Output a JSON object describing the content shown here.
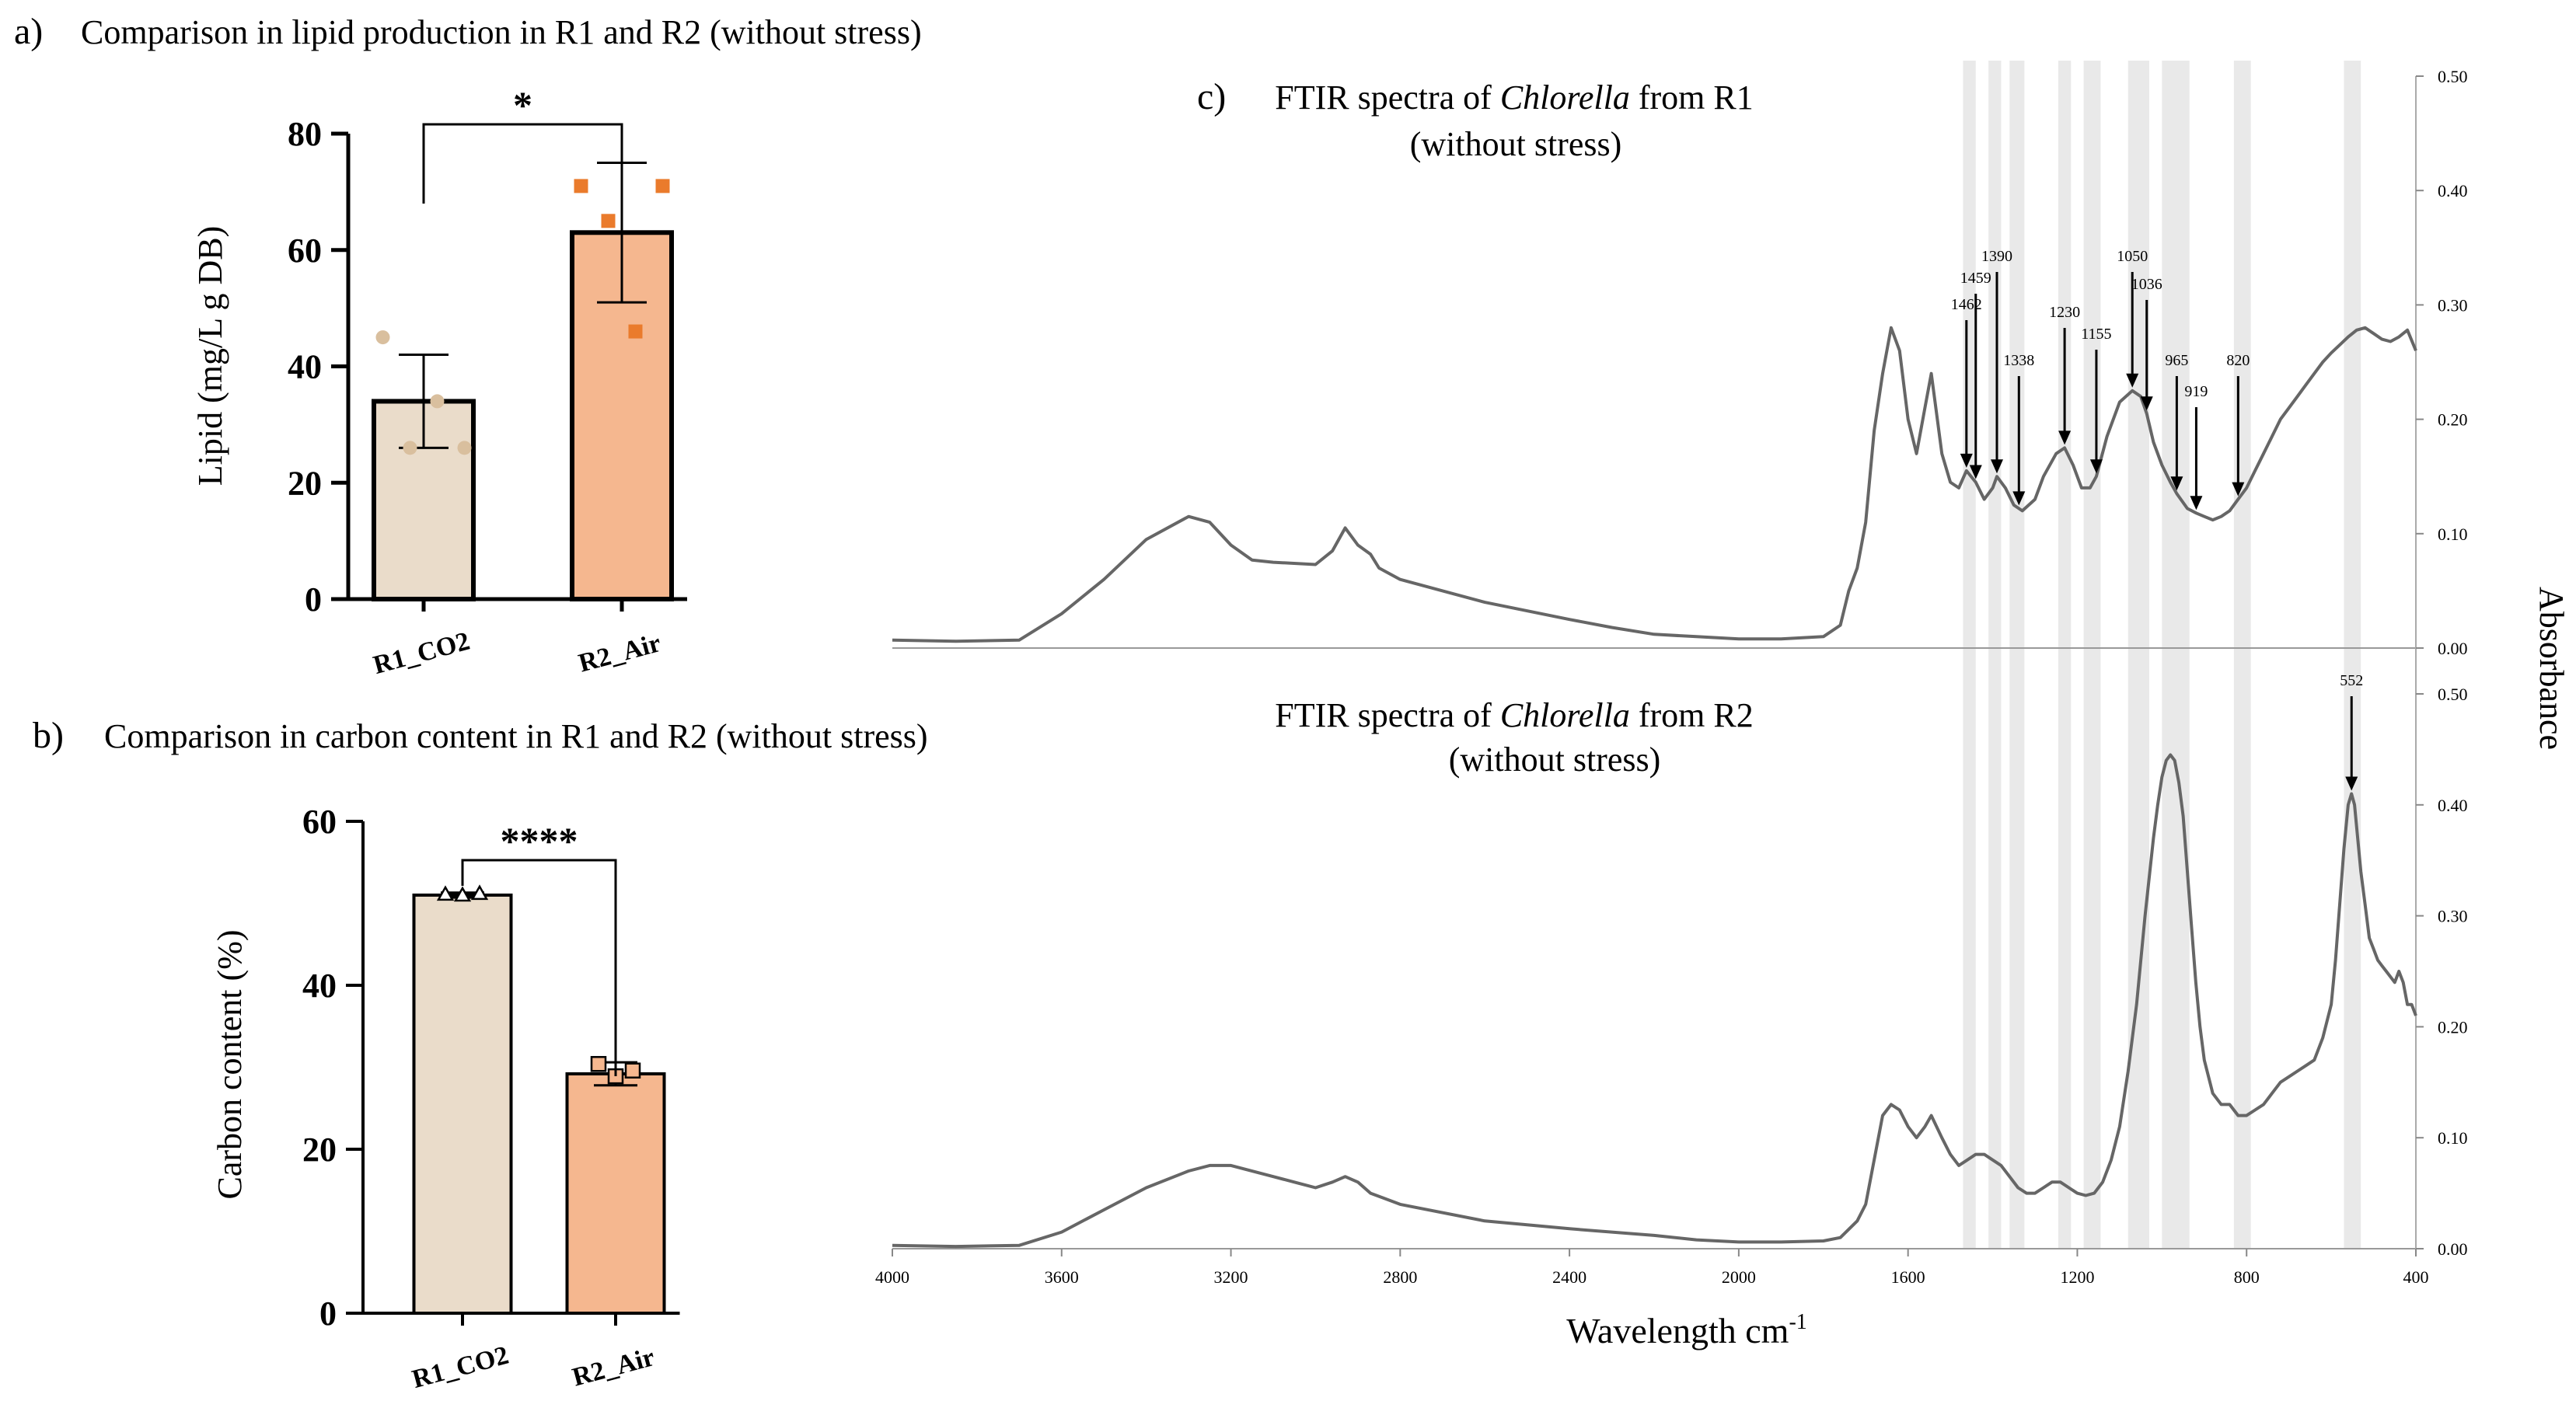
{
  "chart_data": [
    {
      "id": "a",
      "type": "bar",
      "panel_letter": "a)",
      "title": "Comparison in lipid production in R1 and R2 (without stress)",
      "ylabel": "Lipid  (mg/L g DB)",
      "ylim": [
        0,
        80
      ],
      "yticks": [
        0,
        20,
        40,
        60,
        80
      ],
      "categories": [
        "R1_CO2",
        "R2_Air"
      ],
      "values": [
        34,
        63
      ],
      "errors": [
        8,
        12
      ],
      "points": [
        [
          45,
          26,
          34,
          26
        ],
        [
          71,
          65,
          46,
          71
        ]
      ],
      "significance": "*",
      "colors": [
        "#eadcca",
        "#f5b78f"
      ],
      "point_colors": [
        "#d9bf9e",
        "#ea7b2c"
      ]
    },
    {
      "id": "b",
      "type": "bar",
      "panel_letter": "b)",
      "title": "Comparison in carbon content in R1 and R2 (without stress)",
      "ylabel": "Carbon content  (%)",
      "ylim": [
        0,
        60
      ],
      "yticks": [
        0,
        20,
        40,
        60
      ],
      "categories": [
        "R1_CO2",
        "R2_Air"
      ],
      "values": [
        51,
        29.2
      ],
      "errors": [
        0.3,
        1.4
      ],
      "points": [
        [
          51.1,
          51.0,
          51.2
        ],
        [
          30.4,
          28.9,
          29.6
        ]
      ],
      "significance": "****",
      "colors": [
        "#eadcca",
        "#f5b78f"
      ]
    },
    {
      "id": "c",
      "type": "line",
      "panel_letter": "c)",
      "title_prefix": "FTIR spectra of ",
      "title_species": "Chlorella",
      "xlabel": "Wavelength cm",
      "xlabel_sup": "-1",
      "right_label": "Absorbance",
      "xlim": [
        4000,
        400
      ],
      "xticks": [
        "4000",
        "3600",
        "3200",
        "2800",
        "2400",
        "2000",
        "1600",
        "1200",
        "800",
        "400"
      ],
      "bands": [
        [
          1470,
          1440
        ],
        [
          1410,
          1380
        ],
        [
          1360,
          1325
        ],
        [
          1245,
          1215
        ],
        [
          1185,
          1145
        ],
        [
          1080,
          1030
        ],
        [
          1000,
          935
        ],
        [
          830,
          790
        ],
        [
          570,
          530
        ]
      ],
      "series": [
        {
          "name": "R1",
          "title_suffix": " from R1",
          "subtitle": "(without stress)",
          "ylim": [
            0,
            0.5
          ],
          "yticks": [
            "0.00",
            "0.10",
            "0.20",
            "0.30",
            "0.40",
            "0.50"
          ],
          "x": [
            4000,
            3850,
            3700,
            3600,
            3500,
            3400,
            3300,
            3250,
            3200,
            3150,
            3100,
            3000,
            2960,
            2930,
            2900,
            2870,
            2850,
            2800,
            2600,
            2400,
            2300,
            2200,
            2100,
            2000,
            1900,
            1800,
            1760,
            1740,
            1720,
            1700,
            1680,
            1660,
            1640,
            1620,
            1600,
            1580,
            1560,
            1545,
            1520,
            1500,
            1480,
            1462,
            1440,
            1420,
            1400,
            1390,
            1370,
            1350,
            1330,
            1300,
            1280,
            1250,
            1230,
            1210,
            1190,
            1170,
            1155,
            1130,
            1100,
            1070,
            1050,
            1036,
            1020,
            1000,
            980,
            965,
            940,
            919,
            900,
            880,
            860,
            840,
            820,
            800,
            780,
            760,
            740,
            720,
            700,
            680,
            660,
            640,
            620,
            600,
            580,
            560,
            540,
            520,
            500,
            480,
            460,
            440,
            420,
            400
          ],
          "y": [
            0.007,
            0.006,
            0.007,
            0.03,
            0.06,
            0.095,
            0.115,
            0.11,
            0.09,
            0.077,
            0.075,
            0.073,
            0.085,
            0.105,
            0.09,
            0.082,
            0.07,
            0.06,
            0.04,
            0.025,
            0.018,
            0.012,
            0.01,
            0.008,
            0.008,
            0.01,
            0.02,
            0.05,
            0.07,
            0.11,
            0.19,
            0.24,
            0.28,
            0.26,
            0.2,
            0.17,
            0.21,
            0.24,
            0.17,
            0.145,
            0.14,
            0.155,
            0.145,
            0.13,
            0.14,
            0.15,
            0.14,
            0.125,
            0.12,
            0.13,
            0.15,
            0.17,
            0.175,
            0.16,
            0.14,
            0.14,
            0.15,
            0.185,
            0.215,
            0.225,
            0.22,
            0.205,
            0.18,
            0.16,
            0.145,
            0.135,
            0.122,
            0.118,
            0.115,
            0.112,
            0.115,
            0.12,
            0.13,
            0.14,
            0.155,
            0.17,
            0.185,
            0.2,
            0.21,
            0.22,
            0.23,
            0.24,
            0.25,
            0.258,
            0.265,
            0.272,
            0.278,
            0.28,
            0.275,
            0.27,
            0.268,
            0.272,
            0.278,
            0.26
          ]
        },
        {
          "name": "R2",
          "title_suffix": " from R2",
          "subtitle": "(without stress)",
          "ylim": [
            0,
            0.5
          ],
          "yticks": [
            "0.00",
            "0.10",
            "0.20",
            "0.30",
            "0.40",
            "0.50"
          ],
          "x": [
            4000,
            3850,
            3700,
            3600,
            3500,
            3400,
            3300,
            3250,
            3200,
            3100,
            3000,
            2960,
            2930,
            2900,
            2870,
            2800,
            2600,
            2400,
            2200,
            2100,
            2000,
            1900,
            1800,
            1760,
            1720,
            1700,
            1680,
            1660,
            1640,
            1620,
            1600,
            1580,
            1560,
            1545,
            1520,
            1500,
            1480,
            1460,
            1440,
            1420,
            1400,
            1380,
            1360,
            1340,
            1320,
            1300,
            1280,
            1260,
            1240,
            1220,
            1200,
            1180,
            1160,
            1140,
            1120,
            1100,
            1080,
            1060,
            1040,
            1020,
            1010,
            1000,
            990,
            980,
            970,
            960,
            950,
            940,
            930,
            920,
            910,
            900,
            880,
            860,
            840,
            820,
            800,
            780,
            760,
            740,
            720,
            700,
            680,
            660,
            640,
            620,
            600,
            590,
            580,
            570,
            560,
            552,
            545,
            540,
            530,
            520,
            510,
            500,
            490,
            480,
            470,
            460,
            450,
            440,
            430,
            420,
            410,
            400
          ],
          "y": [
            0.003,
            0.002,
            0.003,
            0.015,
            0.035,
            0.055,
            0.07,
            0.075,
            0.075,
            0.065,
            0.055,
            0.06,
            0.065,
            0.06,
            0.05,
            0.04,
            0.025,
            0.018,
            0.012,
            0.008,
            0.006,
            0.006,
            0.007,
            0.01,
            0.025,
            0.04,
            0.08,
            0.12,
            0.13,
            0.125,
            0.11,
            0.1,
            0.11,
            0.12,
            0.1,
            0.085,
            0.075,
            0.08,
            0.085,
            0.085,
            0.08,
            0.075,
            0.065,
            0.055,
            0.05,
            0.05,
            0.055,
            0.06,
            0.06,
            0.055,
            0.05,
            0.048,
            0.05,
            0.06,
            0.08,
            0.11,
            0.16,
            0.22,
            0.3,
            0.37,
            0.4,
            0.425,
            0.44,
            0.445,
            0.44,
            0.42,
            0.39,
            0.34,
            0.29,
            0.24,
            0.2,
            0.17,
            0.14,
            0.13,
            0.13,
            0.12,
            0.12,
            0.125,
            0.13,
            0.14,
            0.15,
            0.155,
            0.16,
            0.165,
            0.17,
            0.19,
            0.22,
            0.26,
            0.31,
            0.36,
            0.4,
            0.41,
            0.4,
            0.38,
            0.34,
            0.31,
            0.28,
            0.27,
            0.26,
            0.255,
            0.25,
            0.245,
            0.24,
            0.25,
            0.24,
            0.22,
            0.22,
            0.21
          ]
        }
      ],
      "annotations": [
        {
          "series": "R1",
          "label": "1462",
          "x": 1462
        },
        {
          "series": "R1",
          "label": "1459",
          "x": 1440
        },
        {
          "series": "R1",
          "label": "1390",
          "x": 1390
        },
        {
          "series": "R1",
          "label": "1338",
          "x": 1338
        },
        {
          "series": "R1",
          "label": "1230",
          "x": 1230
        },
        {
          "series": "R1",
          "label": "1155",
          "x": 1155
        },
        {
          "series": "R1",
          "label": "1050",
          "x": 1070
        },
        {
          "series": "R1",
          "label": "1036",
          "x": 1036
        },
        {
          "series": "R1",
          "label": "965",
          "x": 965
        },
        {
          "series": "R1",
          "label": "919",
          "x": 919
        },
        {
          "series": "R1",
          "label": "820",
          "x": 820
        },
        {
          "series": "R2",
          "label": "552",
          "x": 552
        }
      ]
    }
  ]
}
